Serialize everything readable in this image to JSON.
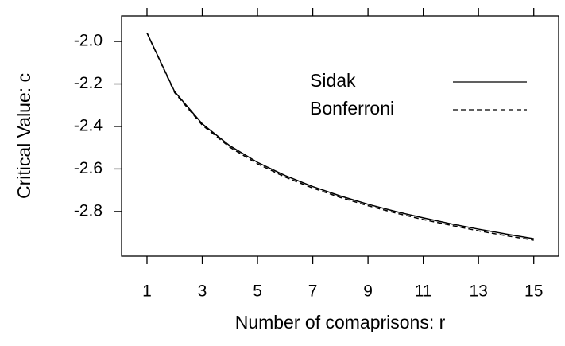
{
  "chart_data": {
    "type": "line",
    "xlabel": "Number of comaprisons: r",
    "ylabel": "Critical Value: c",
    "x": [
      1,
      2,
      3,
      4,
      5,
      6,
      7,
      8,
      9,
      10,
      11,
      12,
      13,
      14,
      15
    ],
    "series": [
      {
        "name": "Sidak",
        "color": "#000000",
        "dash": "solid",
        "values": [
          -1.96,
          -2.236,
          -2.388,
          -2.491,
          -2.569,
          -2.631,
          -2.683,
          -2.727,
          -2.766,
          -2.8,
          -2.83,
          -2.858,
          -2.883,
          -2.906,
          -2.928
        ]
      },
      {
        "name": "Bonferroni",
        "color": "#000000",
        "dash": "dashed",
        "values": [
          -1.96,
          -2.241,
          -2.394,
          -2.498,
          -2.576,
          -2.638,
          -2.69,
          -2.734,
          -2.773,
          -2.807,
          -2.838,
          -2.865,
          -2.891,
          -2.914,
          -2.935
        ]
      }
    ],
    "xlim": [
      0.08,
      15.9
    ],
    "xticks": [
      1,
      3,
      5,
      7,
      9,
      11,
      13,
      15
    ],
    "ylim": [
      -3.01,
      -1.88
    ],
    "yticks": [
      {
        "value": -2.0,
        "label": "-2.0"
      },
      -2.2,
      -2.4,
      -2.6,
      -2.8
    ],
    "legend": "top-right"
  }
}
